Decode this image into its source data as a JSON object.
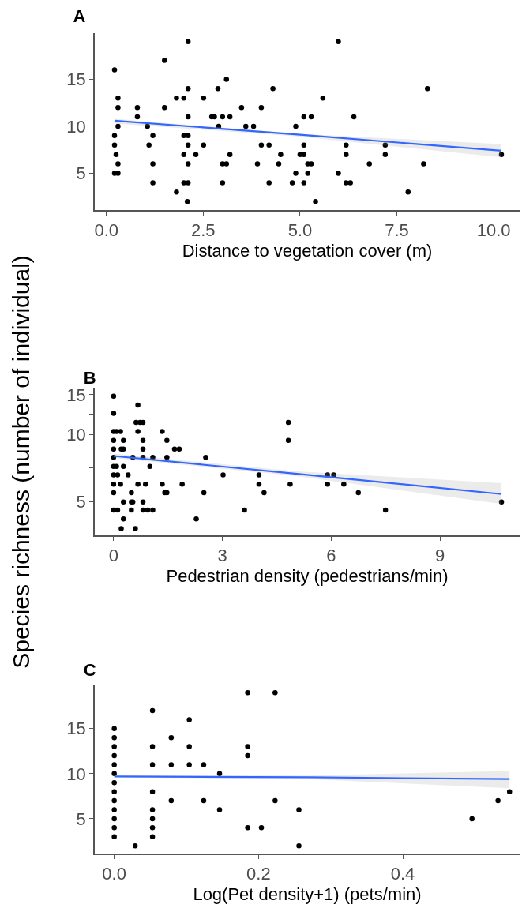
{
  "chart_data": [
    {
      "type": "scatter",
      "title": "A",
      "xlabel": "Distance to vegetation cover (m)",
      "xlim": [
        -0.3,
        10.67
      ],
      "xticks": [
        {
          "value": 0,
          "label": "0.0"
        },
        2.5,
        {
          "value": 5,
          "label": "5.0"
        },
        7.5,
        {
          "value": 10,
          "label": "10.0"
        }
      ],
      "ylim": [
        1.1,
        19.9
      ],
      "yticks": [
        5,
        10,
        15
      ],
      "grid": false,
      "marker": "circle",
      "series": [
        {
          "type": "scatter",
          "color": "#000000",
          "x": [
            2.11,
            5.99,
            1.5,
            0.21,
            3.1,
            2.11,
            2.88,
            4.3,
            8.29,
            0.3,
            1.81,
            2.0,
            2.51,
            5.59,
            0.3,
            0.8,
            1.5,
            3.49,
            4.0,
            0.8,
            2.11,
            2.72,
            2.79,
            3.0,
            3.19,
            5.1,
            5.29,
            6.39,
            0.3,
            1.06,
            2.9,
            3.6,
            3.8,
            4.89,
            0.21,
            1.2,
            2.0,
            2.11,
            0.21,
            1.1,
            2.11,
            2.51,
            4.0,
            4.2,
            5.1,
            6.19,
            7.2,
            0.25,
            2.0,
            2.31,
            3.19,
            4.5,
            5.0,
            5.1,
            6.19,
            7.2,
            10.2,
            0.3,
            1.2,
            2.11,
            3.0,
            3.1,
            3.9,
            4.45,
            5.2,
            5.29,
            6.79,
            8.19,
            0.21,
            0.3,
            4.89,
            5.2,
            5.99,
            1.2,
            2.0,
            2.11,
            3.0,
            4.2,
            4.8,
            5.1,
            6.19,
            6.3,
            1.81,
            7.79,
            2.09,
            5.4
          ],
          "values": [
            19,
            19,
            17,
            16,
            15,
            14,
            14,
            14,
            14,
            13,
            13,
            13,
            13,
            13,
            12,
            12,
            12,
            12,
            12,
            11,
            11,
            11,
            11,
            11,
            11,
            11,
            11,
            11,
            10,
            10,
            10,
            10,
            10,
            10,
            9,
            9,
            9,
            9,
            8,
            8,
            8,
            8,
            8,
            8,
            8,
            8,
            8,
            7,
            7,
            7,
            7,
            7,
            7,
            7,
            7,
            7,
            7,
            6,
            6,
            6,
            6,
            6,
            6,
            6,
            6,
            6,
            6,
            6,
            5,
            5,
            5,
            5,
            5,
            4,
            4,
            4,
            4,
            4,
            4,
            4,
            4,
            4,
            3,
            3,
            2,
            2
          ]
        },
        {
          "type": "line",
          "marker": "none",
          "color": "#3366ff",
          "x": [
            0.21,
            5.0,
            10.2
          ],
          "values": [
            10.6,
            9.1,
            7.4
          ],
          "lower": [
            10.3,
            8.9,
            6.7
          ],
          "upper": [
            10.8,
            9.2,
            8.1
          ]
        }
      ]
    },
    {
      "type": "scatter",
      "title": "B",
      "xlabel": "Pedestrian density (pedestrians/min)",
      "ylabel": "Species richness (number of individual)",
      "log": "y",
      "xlim": [
        -0.52,
        11.2
      ],
      "xticks": [
        0,
        3,
        6,
        9
      ],
      "ylim": [
        3.55,
        16
      ],
      "yticks": [
        5,
        {
          "value": 7.07,
          "label": null
        },
        10,
        {
          "value": 12.25,
          "label": null
        },
        15
      ],
      "grid": false,
      "marker": "circle",
      "series": [
        {
          "type": "scatter",
          "color": "#000000",
          "x": [
            0,
            0.67,
            0,
            0.62,
            0.73,
            0.81,
            4.82,
            0,
            0.08,
            0.19,
            0.67,
            1.34,
            0,
            0.27,
            0.81,
            1.47,
            4.82,
            0,
            0.21,
            0.27,
            0.81,
            1.68,
            1.81,
            0,
            0.53,
            0.81,
            1.08,
            1.47,
            2.54,
            0,
            0.08,
            0.27,
            1.0,
            0,
            0.11,
            0.4,
            3.02,
            4.01,
            5.9,
            6.07,
            0,
            0.19,
            0.67,
            0.88,
            1.34,
            1.89,
            4.01,
            4.87,
            5.9,
            6.35,
            0,
            0.49,
            1.41,
            1.47,
            2.49,
            4.15,
            6.75,
            0.27,
            0.49,
            0.53,
            0.81,
            10.7,
            0,
            0.11,
            0.49,
            0.81,
            0.94,
            1.08,
            3.61,
            7.5,
            0.27,
            2.28,
            0.21,
            0.6
          ],
          "values": [
            14.8,
            13.5,
            12.4,
            11.3,
            11.3,
            11.3,
            11.3,
            10.3,
            10.3,
            10.3,
            10.3,
            10.3,
            9.4,
            9.4,
            9.4,
            9.4,
            9.4,
            8.6,
            8.6,
            8.6,
            8.6,
            8.6,
            8.6,
            7.9,
            7.9,
            7.9,
            7.9,
            7.9,
            7.9,
            7.2,
            7.2,
            7.2,
            7.2,
            6.6,
            6.6,
            6.6,
            6.6,
            6.6,
            6.6,
            6.6,
            6.0,
            6.0,
            6.0,
            6.0,
            6.0,
            6.0,
            6.0,
            6.0,
            6.0,
            6.0,
            5.5,
            5.5,
            5.5,
            5.5,
            5.5,
            5.5,
            5.5,
            5.0,
            5.0,
            5.0,
            5.0,
            5.0,
            4.6,
            4.6,
            4.6,
            4.6,
            4.6,
            4.6,
            4.6,
            4.6,
            4.2,
            4.2,
            3.8,
            3.8
          ]
        },
        {
          "type": "line",
          "marker": "none",
          "color": "#3366ff",
          "x": [
            0,
            5.0,
            10.7
          ],
          "values": [
            8.01,
            6.68,
            5.42
          ],
          "lower": [
            7.85,
            6.53,
            4.9
          ],
          "upper": [
            8.2,
            6.85,
            6.06
          ]
        }
      ]
    },
    {
      "type": "scatter",
      "title": "C",
      "xlabel": "Log(Pet density+1) (pets/min)",
      "xlim": [
        -0.027,
        0.562
      ],
      "xticks": [
        {
          "value": 0,
          "label": "0.0"
        },
        0.2,
        0.4
      ],
      "ylim": [
        1.14,
        19.8
      ],
      "yticks": [
        5,
        10,
        15
      ],
      "grid": false,
      "marker": "circle",
      "series": [
        {
          "type": "scatter",
          "color": "#000000",
          "x": [
            0,
            0,
            0,
            0,
            0,
            0,
            0,
            0,
            0,
            0,
            0,
            0,
            0,
            0.029,
            0.053,
            0.053,
            0.053,
            0.053,
            0.053,
            0.053,
            0.053,
            0.053,
            0.079,
            0.079,
            0.079,
            0.104,
            0.104,
            0.104,
            0.124,
            0.124,
            0.146,
            0.146,
            0.185,
            0.185,
            0.185,
            0.185,
            0.204,
            0.223,
            0.223,
            0.256,
            0.256,
            0.496,
            0.532,
            0.548
          ],
          "values": [
            15,
            14,
            13,
            12,
            11,
            10,
            9,
            8,
            7,
            6,
            5,
            4,
            3,
            2,
            17,
            13,
            11,
            8,
            6,
            5,
            4,
            3,
            14,
            11,
            7,
            16,
            13,
            11,
            11,
            7,
            10,
            6,
            19,
            13,
            12,
            4,
            4,
            19,
            7,
            6,
            2,
            5,
            7,
            8
          ]
        },
        {
          "type": "line",
          "marker": "none",
          "color": "#3366ff",
          "x": [
            0,
            0.27,
            0.548
          ],
          "values": [
            9.7,
            9.6,
            9.4
          ],
          "lower": [
            9.6,
            9.4,
            8.4
          ],
          "upper": [
            9.9,
            9.8,
            10.3
          ]
        }
      ]
    }
  ]
}
